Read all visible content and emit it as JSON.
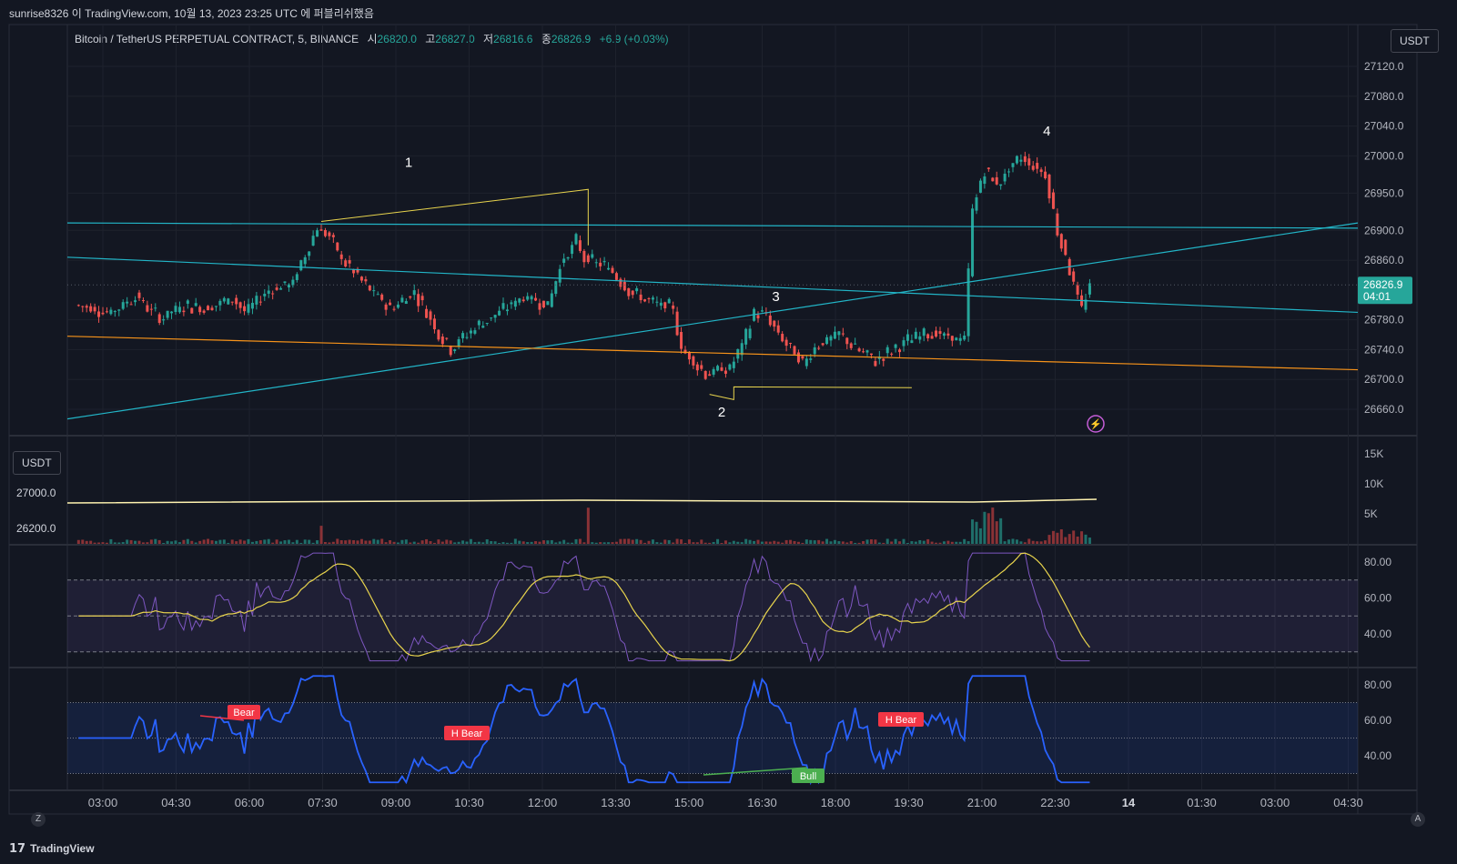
{
  "header": {
    "publish_line": "sunrise8326 이 TradingView.com, 10월 13, 2023 23:25 UTC 에 퍼블리쉬했음"
  },
  "legend": {
    "symbol": "Bitcoin / TetherUS PERPETUAL CONTRACT, 5, BINANCE",
    "open_label": "시",
    "open": "26820.0",
    "high_label": "고",
    "high": "26827.0",
    "low_label": "저",
    "low": "26816.6",
    "close_label": "종",
    "close": "26826.9",
    "change": "+6.9 (+0.03%)"
  },
  "currency_button": "USDT",
  "currency_button_left": "USDT",
  "last_price": {
    "value": "26826.9",
    "countdown": "04:01"
  },
  "footer": {
    "brand": "TradingView",
    "left_toggle": "Z",
    "right_toggle": "A"
  },
  "colors": {
    "background": "#131722",
    "up": "#26a69a",
    "down": "#ef5350",
    "cyan_line": "#22b5c7",
    "orange_line": "#f7931a",
    "yellow_line": "#e8d44d",
    "rsi_line": "#7e57c2",
    "rsi_ma": "#e8d44d",
    "osc_line": "#2962ff",
    "bear_label": "#f23645",
    "bull_label": "#4caf50"
  },
  "chart_data": [
    {
      "type": "candlestick",
      "pane": "price",
      "x_ticks": [
        "03:00",
        "04:30",
        "06:00",
        "07:30",
        "09:00",
        "10:30",
        "12:00",
        "13:30",
        "15:00",
        "16:30",
        "18:00",
        "19:30",
        "21:00",
        "22:30",
        "14",
        "01:30",
        "03:00",
        "04:30"
      ],
      "y_ticks": [
        "27120.0",
        "27080.0",
        "27040.0",
        "27000.0",
        "26950.0",
        "26900.0",
        "26860.0",
        "26780.0",
        "26740.0",
        "26700.0",
        "26660.0"
      ],
      "ylim": [
        26640,
        27150
      ],
      "wave_labels": [
        "1",
        "2",
        "3",
        "4"
      ],
      "anchors": [
        {
          "t": "02:30",
          "p": 26800
        },
        {
          "t": "03:15",
          "p": 26790
        },
        {
          "t": "03:45",
          "p": 26812
        },
        {
          "t": "04:15",
          "p": 26782
        },
        {
          "t": "04:45",
          "p": 26800
        },
        {
          "t": "05:15",
          "p": 26795
        },
        {
          "t": "05:45",
          "p": 26810
        },
        {
          "t": "06:00",
          "p": 26790
        },
        {
          "t": "06:30",
          "p": 26820
        },
        {
          "t": "07:00",
          "p": 26830
        },
        {
          "t": "07:30",
          "p": 26905
        },
        {
          "t": "07:45",
          "p": 26890
        },
        {
          "t": "08:00",
          "p": 26862
        },
        {
          "t": "08:30",
          "p": 26825
        },
        {
          "t": "09:00",
          "p": 26795
        },
        {
          "t": "09:30",
          "p": 26818
        },
        {
          "t": "10:00",
          "p": 26762
        },
        {
          "t": "10:15",
          "p": 26742
        },
        {
          "t": "10:45",
          "p": 26770
        },
        {
          "t": "11:15",
          "p": 26790
        },
        {
          "t": "11:45",
          "p": 26812
        },
        {
          "t": "12:15",
          "p": 26800
        },
        {
          "t": "12:30",
          "p": 26852
        },
        {
          "t": "12:50",
          "p": 26885
        },
        {
          "t": "13:00",
          "p": 26862
        },
        {
          "t": "13:30",
          "p": 26850
        },
        {
          "t": "14:00",
          "p": 26815
        },
        {
          "t": "14:30",
          "p": 26800
        },
        {
          "t": "14:50",
          "p": 26795
        },
        {
          "t": "15:00",
          "p": 26740
        },
        {
          "t": "15:30",
          "p": 26708
        },
        {
          "t": "16:00",
          "p": 26715
        },
        {
          "t": "16:15",
          "p": 26745
        },
        {
          "t": "16:30",
          "p": 26790
        },
        {
          "t": "16:45",
          "p": 26785
        },
        {
          "t": "17:00",
          "p": 26760
        },
        {
          "t": "17:30",
          "p": 26720
        },
        {
          "t": "17:45",
          "p": 26745
        },
        {
          "t": "18:15",
          "p": 26760
        },
        {
          "t": "18:40",
          "p": 26738
        },
        {
          "t": "19:00",
          "p": 26725
        },
        {
          "t": "19:30",
          "p": 26745
        },
        {
          "t": "20:00",
          "p": 26765
        },
        {
          "t": "20:30",
          "p": 26755
        },
        {
          "t": "20:50",
          "p": 26755
        },
        {
          "t": "21:00",
          "p": 26930
        },
        {
          "t": "21:15",
          "p": 26980
        },
        {
          "t": "21:30",
          "p": 26962
        },
        {
          "t": "22:00",
          "p": 26998
        },
        {
          "t": "22:30",
          "p": 26975
        },
        {
          "t": "22:45",
          "p": 26900
        },
        {
          "t": "23:00",
          "p": 26848
        },
        {
          "t": "23:15",
          "p": 26792
        },
        {
          "t": "23:25",
          "p": 26826.9
        }
      ]
    },
    {
      "type": "bar",
      "pane": "volume",
      "y_ticks": [
        "15K",
        "10K",
        "5K"
      ],
      "left_scale": [
        "27000.0",
        "26200.0"
      ],
      "spikes": [
        {
          "t": "07:30",
          "v": 3000
        },
        {
          "t": "13:00",
          "v": 6000
        },
        {
          "t": "21:00",
          "v": 16000
        },
        {
          "t": "21:10",
          "v": 12000
        },
        {
          "t": "21:20",
          "v": 7000
        },
        {
          "t": "22:45",
          "v": 3000
        }
      ]
    },
    {
      "type": "line",
      "pane": "rsi",
      "y_ticks": [
        "80.00",
        "60.00",
        "40.00"
      ],
      "ylim": [
        20,
        90
      ],
      "bands": [
        30,
        70
      ],
      "series": []
    },
    {
      "type": "line",
      "pane": "oscillator",
      "y_ticks": [
        "80.00",
        "60.00",
        "40.00"
      ],
      "ylim": [
        25,
        85
      ],
      "bands": [
        30,
        70
      ],
      "labels": [
        "Bear",
        "H Bear",
        "H Bear",
        "Bull"
      ]
    }
  ]
}
